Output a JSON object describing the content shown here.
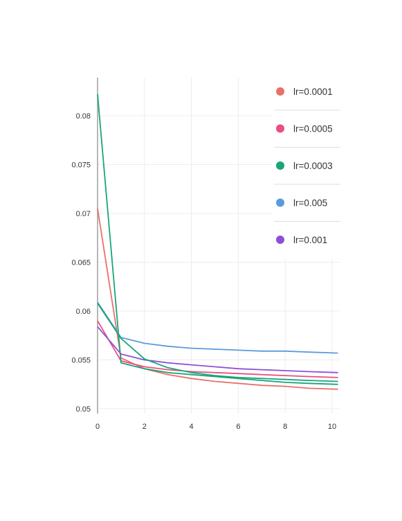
{
  "chart_data": {
    "type": "line",
    "title": "",
    "xlabel": "",
    "ylabel": "",
    "xlim": [
      0,
      10.25
    ],
    "ylim": [
      0.05,
      0.084
    ],
    "x_ticks": [
      0,
      2,
      4,
      6,
      8,
      10
    ],
    "y_ticks": [
      0.05,
      0.055,
      0.06,
      0.065,
      0.07,
      0.075,
      0.08
    ],
    "x_tick_labels": [
      "0",
      "2",
      "4",
      "6",
      "8",
      "10"
    ],
    "y_tick_labels": [
      "0.05",
      "0.055",
      "0.06",
      "0.065",
      "0.07",
      "0.075",
      "0.08"
    ],
    "grid": true,
    "legend_position": "top-right",
    "x": [
      0,
      1,
      2,
      3,
      4,
      5,
      6,
      7,
      8,
      9,
      10.25
    ],
    "series": [
      {
        "name": "lr=0.0001",
        "color": "#e8706a",
        "values": [
          0.0705,
          0.0552,
          0.0541,
          0.0535,
          0.0531,
          0.0528,
          0.0526,
          0.0524,
          0.0523,
          0.0521,
          0.052
        ]
      },
      {
        "name": "lr=0.0005",
        "color": "#ea4f7e",
        "values": [
          0.059,
          0.0549,
          0.0543,
          0.054,
          0.0538,
          0.0537,
          0.0536,
          0.0535,
          0.0534,
          0.0533,
          0.0532
        ]
      },
      {
        "name": "lr=0.0003",
        "color": "#17a57a",
        "values": [
          0.0822,
          0.0547,
          0.0541,
          0.0537,
          0.0535,
          0.0533,
          0.0531,
          0.0529,
          0.0527,
          0.0526,
          0.0525
        ]
      },
      {
        "name": "lr=0.005",
        "color": "#5b9bdc",
        "values": [
          0.0609,
          0.0573,
          0.0567,
          0.0564,
          0.0562,
          0.0561,
          0.056,
          0.0559,
          0.0559,
          0.0558,
          0.0557
        ]
      },
      {
        "name": "lr=0.001",
        "color": "#8e4fd6",
        "values": [
          0.0584,
          0.0556,
          0.055,
          0.0547,
          0.0545,
          0.0543,
          0.0541,
          0.054,
          0.0539,
          0.0538,
          0.0537
        ]
      }
    ],
    "overlay_series": {
      "name": "lr=0.0003",
      "color": "#17a57a",
      "x": [
        0,
        1,
        2,
        3,
        4,
        5,
        6,
        7,
        8,
        9,
        10.25
      ],
      "values": [
        0.0608,
        0.0572,
        0.0551,
        0.0542,
        0.0537,
        0.0534,
        0.0532,
        0.0531,
        0.053,
        0.0529,
        0.0528
      ]
    }
  }
}
